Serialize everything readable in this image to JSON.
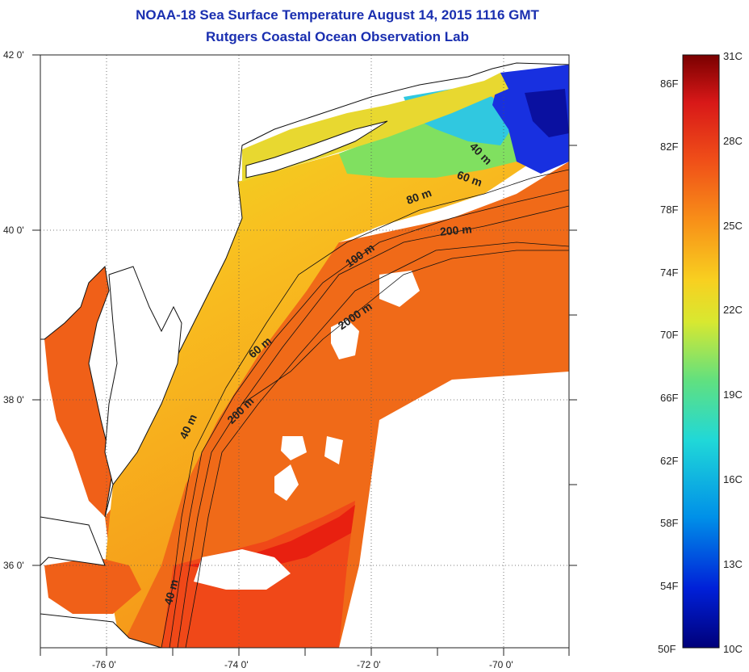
{
  "header": {
    "title": "NOAA-18 Sea Surface Temperature August 14, 2015 1116 GMT",
    "subtitle": "Rutgers Coastal Ocean Observation Lab"
  },
  "map": {
    "lat_labels": [
      "42 0'",
      "40 0'",
      "38 0'",
      "36 0'"
    ],
    "lon_labels": [
      "-76 0'",
      "-74 0'",
      "-72 0'",
      "-70 0'"
    ],
    "contour_labels": [
      "40 m",
      "60 m",
      "80 m",
      "200 m",
      "100 m",
      "2000 m",
      "60 m",
      "200 m",
      "40 m",
      "40 m"
    ],
    "colors": {
      "land": "#ffffff",
      "ocean_warm": "#f06018",
      "shelf": "#f5a820",
      "cold": "#1030e0",
      "coast": "#111111"
    }
  },
  "colorbar": {
    "fahrenheit": [
      "86F",
      "82F",
      "78F",
      "74F",
      "70F",
      "66F",
      "62F",
      "58F",
      "54F",
      "50F"
    ],
    "celsius": [
      "31C",
      "28C",
      "25C",
      "22C",
      "19C",
      "16C",
      "13C",
      "10C"
    ]
  }
}
